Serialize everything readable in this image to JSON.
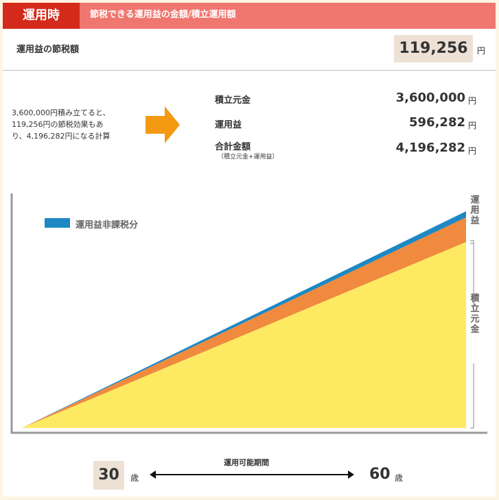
{
  "header": {
    "tag": "運用時",
    "title": "節税できる運用益の金額/積立運用額"
  },
  "savings": {
    "label": "運用益の節税額",
    "value": "119,256",
    "unit": "円"
  },
  "description": [
    "3,600,000円積み立てると、",
    "119,256円の節税効果もあ",
    "り、4,196,282円になる計算"
  ],
  "results": [
    {
      "label": "積立元金",
      "value": "3,600,000",
      "unit": "円"
    },
    {
      "label": "運用益",
      "value": "596,282",
      "unit": "円"
    },
    {
      "label": "合計金額",
      "sub": "（積立元金+運用益）",
      "value": "4,196,282",
      "unit": "円"
    }
  ],
  "colors": {
    "principal": "#fdea62",
    "gain": "#f08a3e",
    "tax_free": "#1e88c4",
    "accent_red": "#d42a1c",
    "header_pink": "#f07670"
  },
  "chart_data": {
    "type": "area",
    "stacked": true,
    "x": [
      30,
      60
    ],
    "xlabel": "運用可能期間",
    "series": [
      {
        "key": "principal",
        "values": [
          0,
          3600000
        ]
      },
      {
        "key": "gain",
        "values": [
          0,
          476986
        ]
      },
      {
        "name": "運用益非課税分",
        "key": "tax_free",
        "values": [
          0,
          119256
        ]
      }
    ],
    "ylim": [
      0,
      4196282
    ],
    "grid": false,
    "legend": "top-left",
    "bracket_labels": {
      "gain": "運用益",
      "principal": "積立元金"
    }
  },
  "period": {
    "label": "運用可能期間",
    "start": "30",
    "end": "60",
    "unit": "歳"
  }
}
